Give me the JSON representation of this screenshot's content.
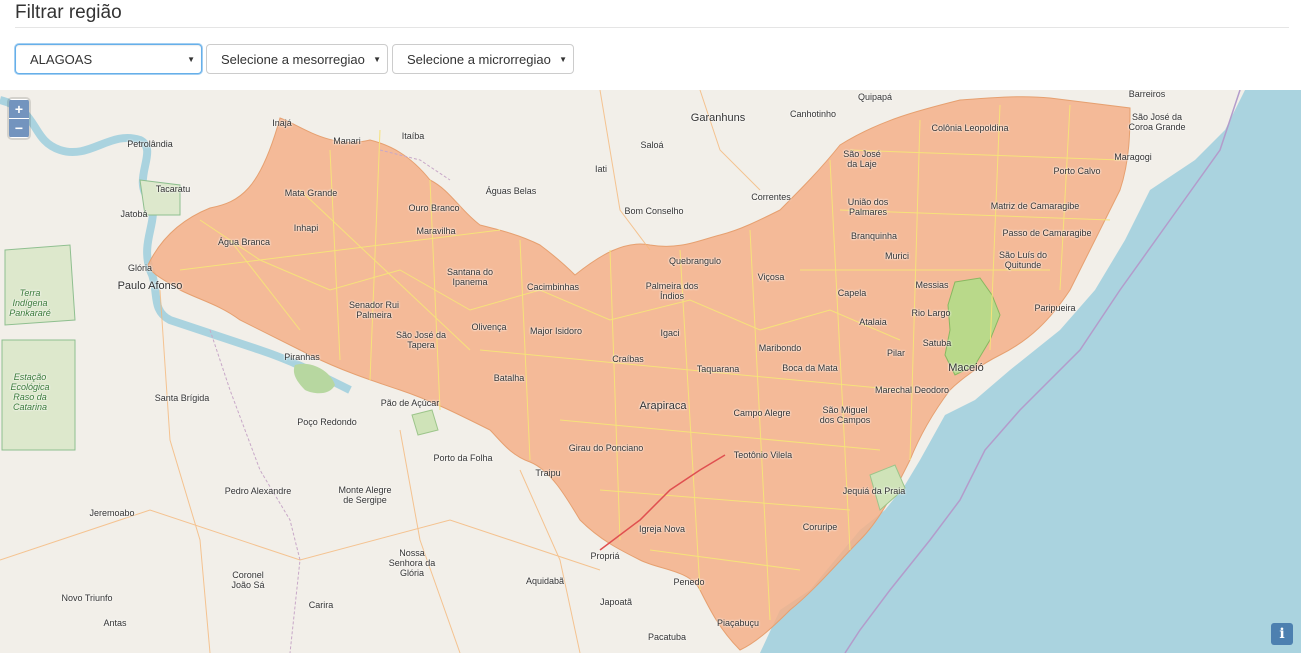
{
  "page": {
    "title": "Filtrar região"
  },
  "filters": {
    "estado": {
      "value": "ALAGOAS"
    },
    "mesorregiao": {
      "value": "Selecione a mesorregiao"
    },
    "microrregiao": {
      "value": "Selecione a microrregiao"
    }
  },
  "map": {
    "zoom_in": "+",
    "zoom_out": "−",
    "info": "i",
    "colors": {
      "highlight": "#f4b08a",
      "selected": "#b9d98a",
      "sea": "#aad3df",
      "land": "#f2efe9"
    },
    "labels": [
      {
        "text": "Quipapá"
      },
      {
        "text": "Barreiros"
      },
      {
        "text": "São José da Coroa Grande"
      },
      {
        "text": "Garanhuns"
      },
      {
        "text": "Canhotinho"
      },
      {
        "text": "Colônia Leopoldina"
      },
      {
        "text": "Inajá"
      },
      {
        "text": "Manari"
      },
      {
        "text": "Itaíba"
      },
      {
        "text": "Petrolândia"
      },
      {
        "text": "Saloá"
      },
      {
        "text": "São José da Laje"
      },
      {
        "text": "Maragogi"
      },
      {
        "text": "Tacaratu"
      },
      {
        "text": "Mata Grande"
      },
      {
        "text": "Iati"
      },
      {
        "text": "Águas Belas"
      },
      {
        "text": "Porto Calvo"
      },
      {
        "text": "Jatobá"
      },
      {
        "text": "Ouro Branco"
      },
      {
        "text": "Correntes"
      },
      {
        "text": "Bom Conselho"
      },
      {
        "text": "União dos Palmares"
      },
      {
        "text": "Matriz de Camaragibe"
      },
      {
        "text": "Inhapi"
      },
      {
        "text": "Maravilha"
      },
      {
        "text": "Passo de Camaragibe"
      },
      {
        "text": "Água Branca"
      },
      {
        "text": "Branquinha"
      },
      {
        "text": "Murici"
      },
      {
        "text": "São Luís do Quitunde"
      },
      {
        "text": "Quebrangulo"
      },
      {
        "text": "Glória"
      },
      {
        "text": "Santana do Ipanema"
      },
      {
        "text": "Viçosa"
      },
      {
        "text": "Terra Indígena Pankararé"
      },
      {
        "text": "Paulo Afonso"
      },
      {
        "text": "Palmeira dos Índios"
      },
      {
        "text": "Cacimbinhas"
      },
      {
        "text": "Messias"
      },
      {
        "text": "Capela"
      },
      {
        "text": "Senador Rui Palmeira"
      },
      {
        "text": "Paripueira"
      },
      {
        "text": "Rio Largo"
      },
      {
        "text": "Atalaia"
      },
      {
        "text": "São José da Tapera"
      },
      {
        "text": "Olivença"
      },
      {
        "text": "Major Isidoro"
      },
      {
        "text": "Igaci"
      },
      {
        "text": "Satuba"
      },
      {
        "text": "Pilar"
      },
      {
        "text": "Maribondo"
      },
      {
        "text": "Piranhas"
      },
      {
        "text": "Craíbas"
      },
      {
        "text": "Estação Ecológica Raso da Catarina"
      },
      {
        "text": "Maceió"
      },
      {
        "text": "Taquarana"
      },
      {
        "text": "Boca da Mata"
      },
      {
        "text": "Marechal Deodoro"
      },
      {
        "text": "Batalha"
      },
      {
        "text": "Santa Brígida"
      },
      {
        "text": "Pão de Açúcar"
      },
      {
        "text": "Arapiraca"
      },
      {
        "text": "São Miguel dos Campos"
      },
      {
        "text": "Campo Alegre"
      },
      {
        "text": "Poço Redondo"
      },
      {
        "text": "Girau do Ponciano"
      },
      {
        "text": "Porto da Folha"
      },
      {
        "text": "Teotônio Vilela"
      },
      {
        "text": "Traipu"
      },
      {
        "text": "Jequiá da Praia"
      },
      {
        "text": "Pedro Alexandre"
      },
      {
        "text": "Monte Alegre de Sergipe"
      },
      {
        "text": "Jeremoabo"
      },
      {
        "text": "Igreja Nova"
      },
      {
        "text": "Coruripe"
      },
      {
        "text": "Nossa Senhora da Glória"
      },
      {
        "text": "Propriá"
      },
      {
        "text": "Coronel João Sá"
      },
      {
        "text": "Aquidabã"
      },
      {
        "text": "Penedo"
      },
      {
        "text": "Novo Triunfo"
      },
      {
        "text": "Carira"
      },
      {
        "text": "Japoatã"
      },
      {
        "text": "Antas"
      },
      {
        "text": "Piaçabuçu"
      },
      {
        "text": "Pacatuba"
      }
    ]
  }
}
